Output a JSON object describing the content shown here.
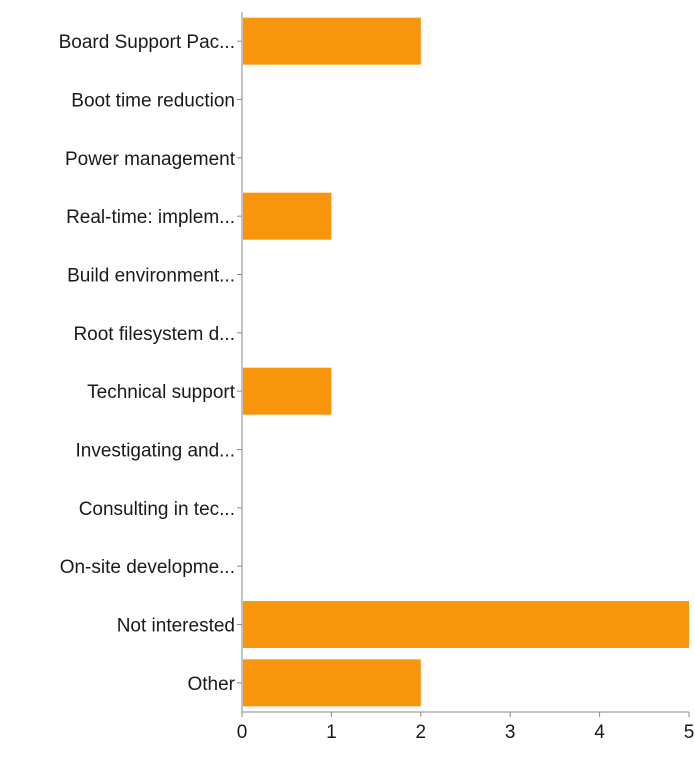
{
  "colors": {
    "bar": "#f7960c",
    "axis": "#8a8a8a",
    "text": "#1a1a1a",
    "background": "#ffffff"
  },
  "chart_data": {
    "type": "bar",
    "orientation": "horizontal",
    "categories": [
      "Board Support Pac...",
      "Boot time reduction",
      "Power management",
      "Real-time: implem...",
      "Build environment...",
      "Root filesystem d...",
      "Technical support",
      "Investigating and...",
      "Consulting in tec...",
      "On-site developme...",
      "Not interested",
      "Other"
    ],
    "values": [
      2,
      0,
      0,
      1,
      0,
      0,
      1,
      0,
      0,
      0,
      5,
      2
    ],
    "xticks": [
      "0",
      "1",
      "2",
      "3",
      "4",
      "5"
    ],
    "xlim": [
      0,
      5
    ],
    "title": "",
    "xlabel": "",
    "ylabel": "",
    "grid": false,
    "legend": "none"
  }
}
